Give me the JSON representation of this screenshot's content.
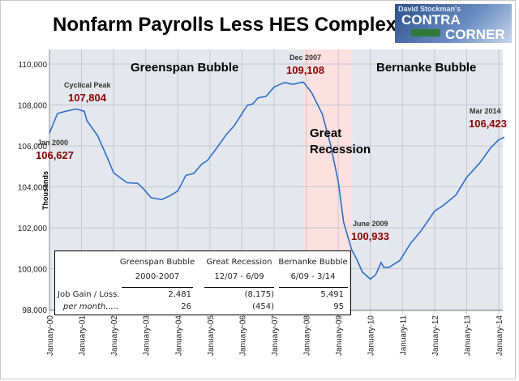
{
  "title": "Nonfarm Payrolls Less HES Complex",
  "logo": {
    "line1": "David Stockman's",
    "line2": "CONTRA",
    "line3": "CORNER",
    "sign": "WALL ST"
  },
  "chart_data": {
    "type": "line",
    "title": "Nonfarm Payrolls Less HES Complex",
    "ylabel": "Thousands",
    "xlabel": "",
    "ylim": [
      98000,
      110000
    ],
    "yticks": [
      "98,000",
      "100,000",
      "102,000",
      "104,000",
      "106,000",
      "108,000",
      "110,000"
    ],
    "xticks": [
      "January-00",
      "January-01",
      "January-02",
      "January-03",
      "January-04",
      "January-05",
      "January-06",
      "January-07",
      "January-08",
      "January-09",
      "January-10",
      "January-11",
      "January-12",
      "January-13",
      "January-14"
    ],
    "grid": true,
    "line_color": "#2a6fc9",
    "shaded_region": {
      "from": "2007-12",
      "to": "2009-06",
      "color": "#fde0e0"
    },
    "series": [
      {
        "points": [
          [
            "2000-01",
            106627
          ],
          [
            "2000-04",
            107586
          ],
          [
            "2000-07",
            107690
          ],
          [
            "2000-11",
            107804
          ],
          [
            "2001-02",
            107690
          ],
          [
            "2001-03",
            107230
          ],
          [
            "2001-07",
            106500
          ],
          [
            "2001-11",
            105320
          ],
          [
            "2002-01",
            104680
          ],
          [
            "2002-06",
            104200
          ],
          [
            "2002-10",
            104170
          ],
          [
            "2002-12",
            103930
          ],
          [
            "2003-03",
            103470
          ],
          [
            "2003-07",
            103380
          ],
          [
            "2003-10",
            103560
          ],
          [
            "2004-01",
            103800
          ],
          [
            "2004-04",
            104560
          ],
          [
            "2004-07",
            104660
          ],
          [
            "2004-10",
            105120
          ],
          [
            "2004-12",
            105280
          ],
          [
            "2005-04",
            105980
          ],
          [
            "2005-07",
            106530
          ],
          [
            "2005-10",
            106970
          ],
          [
            "2006-03",
            107980
          ],
          [
            "2006-05",
            108050
          ],
          [
            "2006-07",
            108350
          ],
          [
            "2006-10",
            108420
          ],
          [
            "2007-01",
            108880
          ],
          [
            "2007-05",
            109100
          ],
          [
            "2007-08",
            109010
          ],
          [
            "2007-11",
            109100
          ],
          [
            "2007-12",
            109108
          ],
          [
            "2008-03",
            108610
          ],
          [
            "2008-07",
            107560
          ],
          [
            "2008-10",
            106110
          ],
          [
            "2009-01",
            104260
          ],
          [
            "2009-03",
            102280
          ],
          [
            "2009-06",
            100933
          ],
          [
            "2009-08",
            100440
          ],
          [
            "2009-10",
            99840
          ],
          [
            "2010-01",
            99490
          ],
          [
            "2010-03",
            99710
          ],
          [
            "2010-05",
            100300
          ],
          [
            "2010-06",
            100070
          ],
          [
            "2010-08",
            100070
          ],
          [
            "2010-12",
            100400
          ],
          [
            "2011-04",
            101230
          ],
          [
            "2011-08",
            101860
          ],
          [
            "2012-01",
            102810
          ],
          [
            "2012-04",
            103070
          ],
          [
            "2012-09",
            103600
          ],
          [
            "2013-01",
            104460
          ],
          [
            "2013-06",
            105180
          ],
          [
            "2013-10",
            105910
          ],
          [
            "2014-01",
            106300
          ],
          [
            "2014-03",
            106423
          ]
        ]
      }
    ],
    "annotations": [
      {
        "label": "Jan 2000",
        "value": "106,627"
      },
      {
        "label": "Cyclical Peak",
        "value": "107,804"
      },
      {
        "label": "Dec 2007",
        "value": "109,108"
      },
      {
        "label": "June 2009",
        "value": "100,933"
      },
      {
        "label": "Mar 2014",
        "value": "106,423"
      }
    ],
    "region_labels": [
      "Greenspan Bubble",
      "Great Recession",
      "Bernanke Bubble"
    ]
  },
  "table": {
    "headers": [
      [
        "Greenspan Bubble",
        "2000-2007"
      ],
      [
        "Great Recession",
        "12/07 - 6/09"
      ],
      [
        "Bernanke Bubble",
        "6/09 - 3/14"
      ]
    ],
    "rows": [
      {
        "label": "Job Gain / Loss.",
        "values": [
          "2,481",
          "(8,175)",
          "5,491"
        ]
      },
      {
        "label": "per month.....",
        "values": [
          "26",
          "(454)",
          "95"
        ]
      }
    ]
  }
}
